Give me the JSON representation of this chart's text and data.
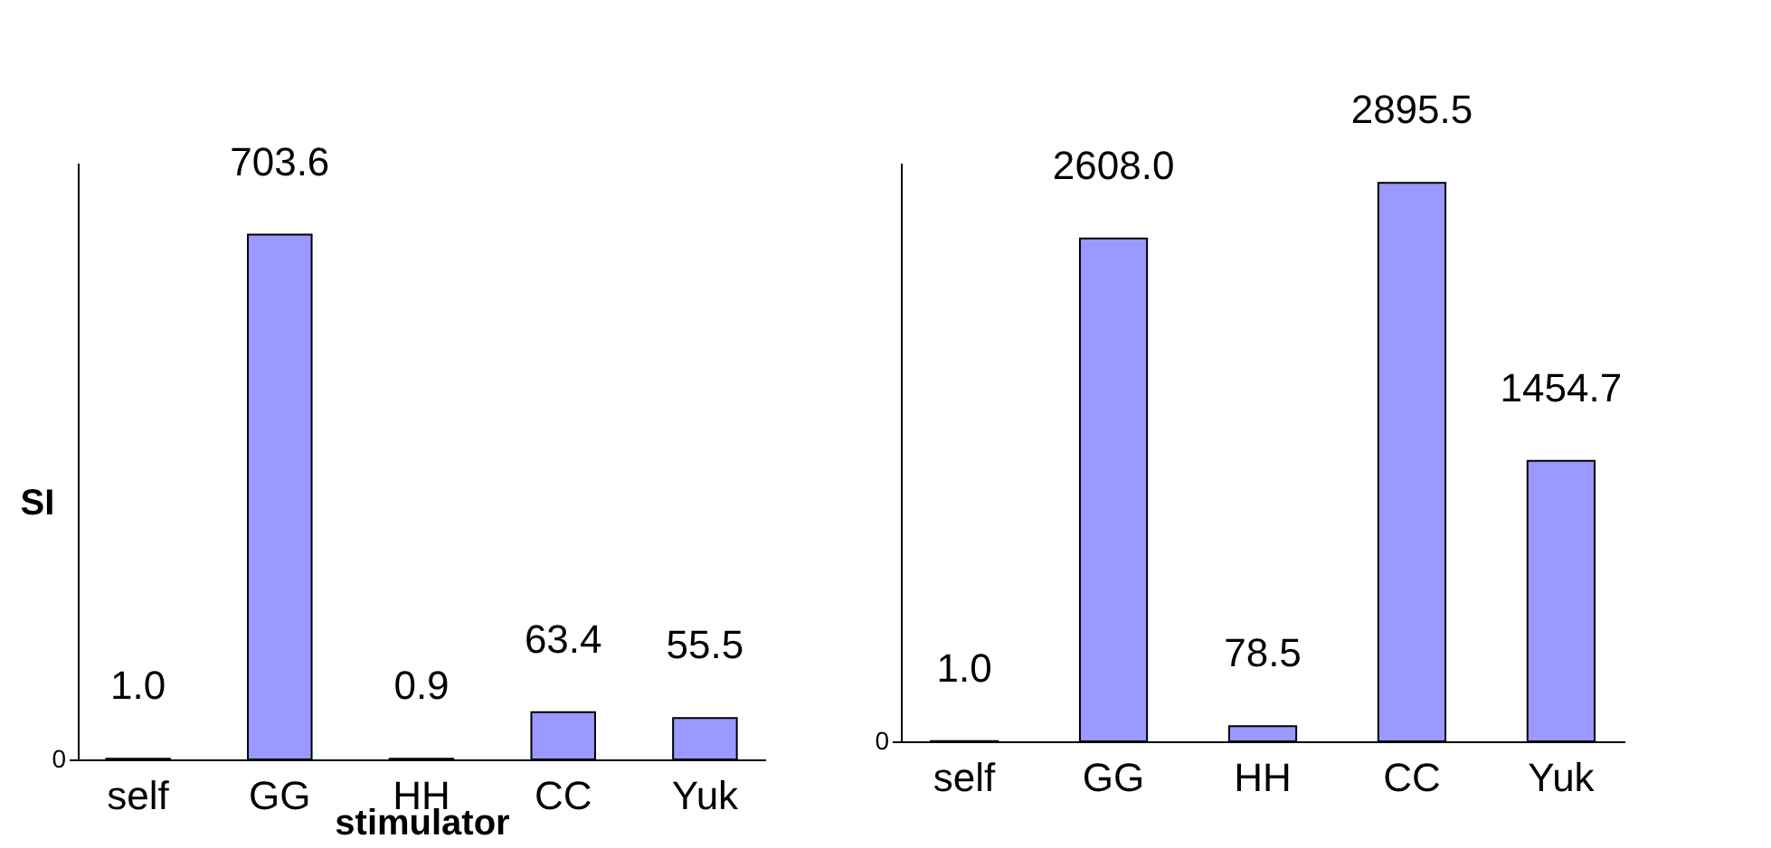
{
  "chart_data": [
    {
      "type": "bar",
      "xlabel": "stimulator",
      "ylabel": "SI",
      "categories": [
        "self",
        "GG",
        "HH",
        "CC",
        "Yuk"
      ],
      "values": [
        1.0,
        703.6,
        0.9,
        63.4,
        55.5
      ],
      "value_labels": [
        "1.0",
        "703.6",
        "0.9",
        "63.4",
        "55.5"
      ],
      "color": "#9999ff",
      "annotations": [
        "0"
      ],
      "grid": false
    },
    {
      "type": "bar",
      "categories": [
        "self",
        "GG",
        "HH",
        "CC",
        "Yuk"
      ],
      "values": [
        1.0,
        2608.0,
        78.5,
        2895.5,
        1454.7
      ],
      "value_labels": [
        "1.0",
        "2608.0",
        "78.5",
        "2895.5",
        "1454.7"
      ],
      "color": "#9999ff",
      "annotations": [
        "0"
      ],
      "grid": false
    }
  ]
}
